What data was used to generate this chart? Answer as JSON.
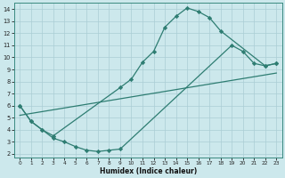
{
  "xlabel": "Humidex (Indice chaleur)",
  "xlim": [
    0,
    23
  ],
  "ylim": [
    2,
    14
  ],
  "xticks": [
    0,
    1,
    2,
    3,
    4,
    5,
    6,
    7,
    8,
    9,
    10,
    11,
    12,
    13,
    14,
    15,
    16,
    17,
    18,
    19,
    20,
    21,
    22,
    23
  ],
  "yticks": [
    2,
    3,
    4,
    5,
    6,
    7,
    8,
    9,
    10,
    11,
    12,
    13,
    14
  ],
  "line_color": "#2e7d72",
  "bg_color": "#cce8ec",
  "grid_color": "#aacdd4",
  "curve1_x": [
    0,
    1,
    2,
    3,
    9,
    10,
    11,
    12,
    13,
    14,
    15,
    16,
    17,
    18,
    22,
    23
  ],
  "curve1_y": [
    6.0,
    4.7,
    4.0,
    3.5,
    7.5,
    8.2,
    9.6,
    10.5,
    12.5,
    13.4,
    14.1,
    13.8,
    13.3,
    12.2,
    9.3,
    9.5
  ],
  "curve2_x": [
    0,
    23
  ],
  "curve2_y": [
    5.2,
    8.7
  ],
  "curve3_x": [
    0,
    1,
    2,
    3,
    4,
    5,
    6,
    7,
    8,
    9,
    19,
    20,
    21,
    22,
    23
  ],
  "curve3_y": [
    6.0,
    4.7,
    4.0,
    3.3,
    3.0,
    2.6,
    2.3,
    2.2,
    2.3,
    2.4,
    11.0,
    10.5,
    9.5,
    9.3,
    9.5
  ],
  "marker": "D",
  "marker_size": 2.2,
  "linewidth": 0.9
}
